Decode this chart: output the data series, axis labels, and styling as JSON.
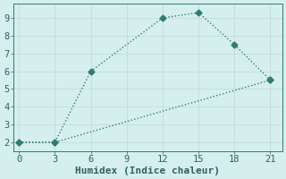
{
  "xlabel": "Humidex (Indice chaleur)",
  "background_color": "#d5efee",
  "grid_color": "#c8dedd",
  "line_color": "#2d7d72",
  "line1_x": [
    0,
    3,
    6,
    12,
    15,
    18,
    21
  ],
  "line1_y": [
    2.0,
    2.0,
    6.0,
    9.0,
    9.3,
    7.5,
    5.5
  ],
  "line2_x": [
    0,
    3,
    21
  ],
  "line2_y": [
    2.0,
    2.0,
    5.5
  ],
  "xlim": [
    -0.5,
    22
  ],
  "ylim": [
    1.5,
    9.8
  ],
  "xticks": [
    0,
    3,
    6,
    9,
    12,
    15,
    18,
    21
  ],
  "yticks": [
    2,
    3,
    4,
    5,
    6,
    7,
    8,
    9
  ],
  "marker": "D",
  "markersize": 3.5,
  "linewidth": 1.0,
  "font_color": "#2d6060",
  "xlabel_fontsize": 8,
  "tick_fontsize": 7.5,
  "linestyle": "dotted"
}
